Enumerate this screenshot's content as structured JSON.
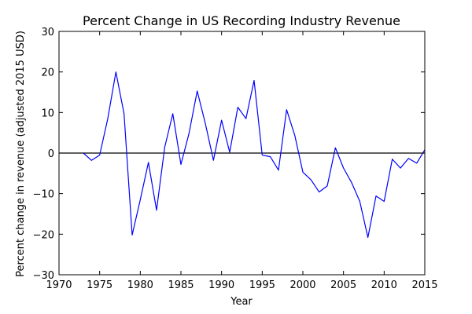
{
  "chart_data": {
    "type": "line",
    "title": "Percent Change in US Recording Industry Revenue",
    "xlabel": "Year",
    "ylabel": "Percent change in revenue (adjusted 2015 USD)",
    "xlim": [
      1970,
      2015
    ],
    "ylim": [
      -30,
      30
    ],
    "xticks": [
      1970,
      1975,
      1980,
      1985,
      1990,
      1995,
      2000,
      2005,
      2010,
      2015
    ],
    "yticks": [
      30,
      20,
      10,
      0,
      -10,
      -20,
      -30
    ],
    "zero_line": true,
    "grid": false,
    "colors": {
      "series": "#0000ff",
      "zero_line": "#000000",
      "frame": "#000000"
    },
    "series": [
      {
        "x": [
          1973,
          1974,
          1975,
          1976,
          1977,
          1978,
          1979,
          1980,
          1981,
          1982,
          1983,
          1984,
          1985,
          1986,
          1987,
          1988,
          1989,
          1990,
          1991,
          1992,
          1993,
          1994,
          1995,
          1996,
          1997,
          1998,
          1999,
          2000,
          2001,
          2002,
          2003,
          2004,
          2005,
          2006,
          2007,
          2008,
          2009,
          2010,
          2011,
          2012,
          2013,
          2014,
          2015
        ],
        "values": [
          0.0,
          -1.8,
          -0.5,
          8.5,
          20.0,
          9.7,
          -20.2,
          -11.5,
          -2.3,
          -14.1,
          1.4,
          9.7,
          -2.8,
          4.9,
          15.3,
          7.3,
          -1.8,
          8.1,
          0.2,
          11.3,
          8.5,
          17.9,
          -0.5,
          -0.9,
          -4.2,
          10.7,
          4.4,
          -4.7,
          -6.6,
          -9.6,
          -8.1,
          1.3,
          -3.7,
          -7.3,
          -11.9,
          -20.8,
          -10.6,
          -11.9,
          -1.5,
          -3.7,
          -1.3,
          -2.5,
          0.8
        ]
      }
    ]
  }
}
